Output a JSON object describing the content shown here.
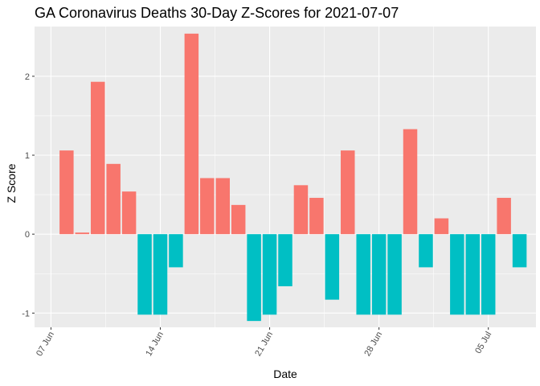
{
  "chart_data": {
    "type": "bar",
    "title": "GA Coronavirus Deaths 30-Day Z-Scores for 2021-07-07",
    "xlabel": "Date",
    "ylabel": "Z Score",
    "ylim": [
      -1.18,
      2.63
    ],
    "y_ticks": [
      -1,
      0,
      1,
      2
    ],
    "y_tick_labels": [
      "-1",
      "0",
      "1",
      "2"
    ],
    "x_ticks": [
      {
        "day": 0,
        "label": "07 Jun"
      },
      {
        "day": 7,
        "label": "14 Jun"
      },
      {
        "day": 14,
        "label": "21 Jun"
      },
      {
        "day": 21,
        "label": "28 Jun"
      },
      {
        "day": 28,
        "label": "05 Jul"
      }
    ],
    "x_range_days": [
      -1.05,
      31.05
    ],
    "dates": [
      "2021-06-08",
      "2021-06-09",
      "2021-06-10",
      "2021-06-11",
      "2021-06-12",
      "2021-06-13",
      "2021-06-14",
      "2021-06-15",
      "2021-06-16",
      "2021-06-17",
      "2021-06-18",
      "2021-06-19",
      "2021-06-20",
      "2021-06-21",
      "2021-06-22",
      "2021-06-23",
      "2021-06-24",
      "2021-06-25",
      "2021-06-26",
      "2021-06-27",
      "2021-06-28",
      "2021-06-29",
      "2021-06-30",
      "2021-07-01",
      "2021-07-02",
      "2021-07-03",
      "2021-07-04",
      "2021-07-05",
      "2021-07-06",
      "2021-07-07"
    ],
    "day_offsets": [
      1,
      2,
      3,
      4,
      5,
      6,
      7,
      8,
      9,
      10,
      11,
      12,
      13,
      14,
      15,
      16,
      17,
      18,
      19,
      20,
      21,
      22,
      23,
      24,
      25,
      26,
      27,
      28,
      29,
      30
    ],
    "values": [
      1.06,
      0.02,
      1.93,
      0.89,
      0.54,
      -1.02,
      -1.02,
      -0.42,
      2.54,
      0.71,
      0.71,
      0.37,
      -1.1,
      -1.02,
      -0.66,
      0.62,
      0.46,
      -0.83,
      1.06,
      -1.02,
      -1.02,
      -1.02,
      1.33,
      -0.42,
      0.2,
      -1.02,
      -1.02,
      -1.02,
      0.46,
      -0.42
    ],
    "colors": {
      "positive": "#F8766D",
      "negative": "#00BFC4",
      "panel": "#EBEBEB",
      "grid_major": "#FFFFFF"
    }
  }
}
